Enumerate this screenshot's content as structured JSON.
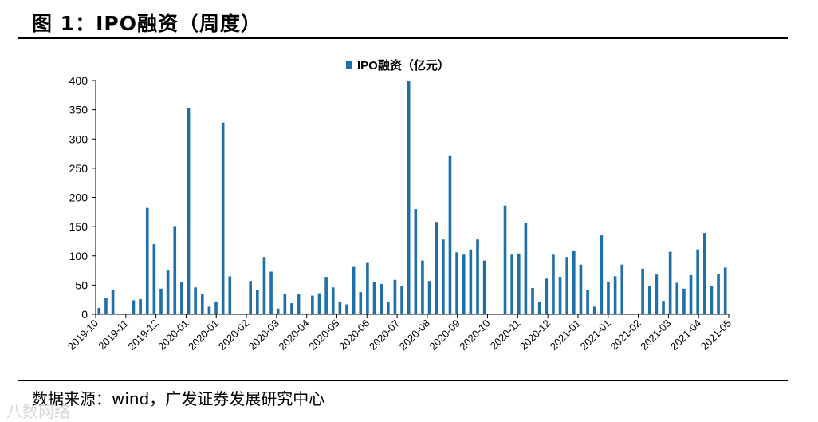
{
  "figure": {
    "title": "图 1：IPO融资（周度）",
    "source": "数据来源：wind，广发证券发展研究中心",
    "watermark": "八数网络"
  },
  "colors": {
    "bar": "#1f6fa8",
    "axis": "#000000"
  },
  "chart_data": {
    "type": "bar",
    "legend_position": "top-center",
    "grid": false,
    "ylim": [
      0,
      400
    ],
    "yticks": [
      0,
      50,
      100,
      150,
      200,
      250,
      300,
      350,
      400
    ],
    "x_tick_labels": [
      "2019-10",
      "2019-11",
      "2019-12",
      "2020-01",
      "2020-01",
      "2020-02",
      "2020-03",
      "2020-04",
      "2020-05",
      "2020-06",
      "2020-07",
      "2020-08",
      "2020-09",
      "2020-10",
      "2020-11",
      "2020-12",
      "2021-01",
      "2021-01",
      "2021-02",
      "2021-03",
      "2021-04",
      "2021-05"
    ],
    "series": [
      {
        "name": "IPO融资（亿元）",
        "values": [
          11,
          28,
          42,
          0,
          0,
          24,
          26,
          182,
          120,
          44,
          75,
          151,
          55,
          353,
          46,
          34,
          13,
          22,
          328,
          65,
          0,
          0,
          57,
          42,
          98,
          73,
          10,
          35,
          19,
          34,
          0,
          32,
          36,
          64,
          46,
          22,
          17,
          81,
          38,
          88,
          56,
          52,
          22,
          59,
          48,
          400,
          180,
          92,
          57,
          158,
          128,
          272,
          106,
          102,
          111,
          128,
          92,
          0,
          0,
          186,
          102,
          104,
          157,
          45,
          22,
          61,
          102,
          64,
          98,
          108,
          85,
          42,
          13,
          135,
          56,
          65,
          85,
          0,
          0,
          78,
          48,
          68,
          23,
          107,
          54,
          44,
          67,
          111,
          139,
          48,
          69,
          80
        ]
      }
    ]
  }
}
